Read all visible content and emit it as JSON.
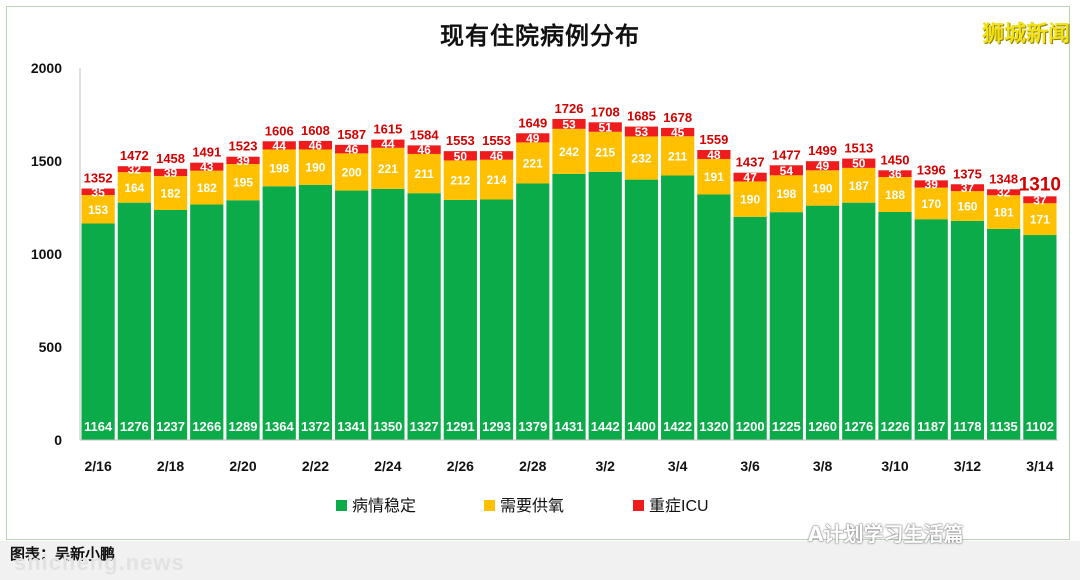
{
  "brand": "狮城新闻",
  "caption": "图表：吴新小鹏",
  "watermark_site": "shicheng.news",
  "wechat_account": "A计划学习生活篇",
  "colors": {
    "stable": "#0bab4a",
    "oxygen": "#ffc000",
    "icu": "#ee1c1c"
  },
  "chart_data": {
    "type": "bar",
    "stacked": true,
    "title": "现有住院病例分布",
    "categories": [
      "2/16",
      "2/17",
      "2/18",
      "2/19",
      "2/20",
      "2/21",
      "2/22",
      "2/23",
      "2/24",
      "2/25",
      "2/26",
      "2/27",
      "2/28",
      "3/1",
      "3/2",
      "3/3",
      "3/4",
      "3/5",
      "3/6",
      "3/7",
      "3/8",
      "3/9",
      "3/10",
      "3/11",
      "3/12",
      "3/13",
      "3/14"
    ],
    "x_tick_labels": [
      "2/16",
      "2/18",
      "2/20",
      "2/22",
      "2/24",
      "2/26",
      "2/28",
      "3/2",
      "3/4",
      "3/6",
      "3/8",
      "3/10",
      "3/12",
      "3/14"
    ],
    "series": [
      {
        "name": "病情稳定",
        "color": "#0bab4a",
        "values": [
          1164,
          1276,
          1237,
          1266,
          1289,
          1364,
          1372,
          1341,
          1350,
          1327,
          1291,
          1293,
          1379,
          1431,
          1442,
          1400,
          1422,
          1320,
          1200,
          1225,
          1260,
          1276,
          1226,
          1187,
          1178,
          1135,
          1102
        ]
      },
      {
        "name": "需要供氧",
        "color": "#ffc000",
        "values": [
          153,
          164,
          182,
          182,
          195,
          198,
          190,
          200,
          221,
          211,
          212,
          214,
          221,
          242,
          215,
          232,
          211,
          191,
          190,
          198,
          190,
          187,
          188,
          170,
          160,
          181,
          171
        ]
      },
      {
        "name": "重症ICU",
        "color": "#ee1c1c",
        "values": [
          35,
          32,
          39,
          43,
          39,
          44,
          46,
          46,
          44,
          46,
          50,
          46,
          49,
          53,
          51,
          53,
          45,
          48,
          47,
          54,
          49,
          50,
          36,
          39,
          37,
          32,
          37
        ]
      }
    ],
    "totals": [
      1352,
      1472,
      1458,
      1491,
      1523,
      1606,
      1608,
      1587,
      1615,
      1584,
      1553,
      1553,
      1649,
      1726,
      1708,
      1685,
      1678,
      1559,
      1437,
      1477,
      1499,
      1513,
      1450,
      1396,
      1375,
      1348,
      1310
    ],
    "ylim": [
      0,
      2000
    ],
    "yticks": [
      0,
      500,
      1000,
      1500,
      2000
    ],
    "legend": "bottom",
    "grid": false
  }
}
